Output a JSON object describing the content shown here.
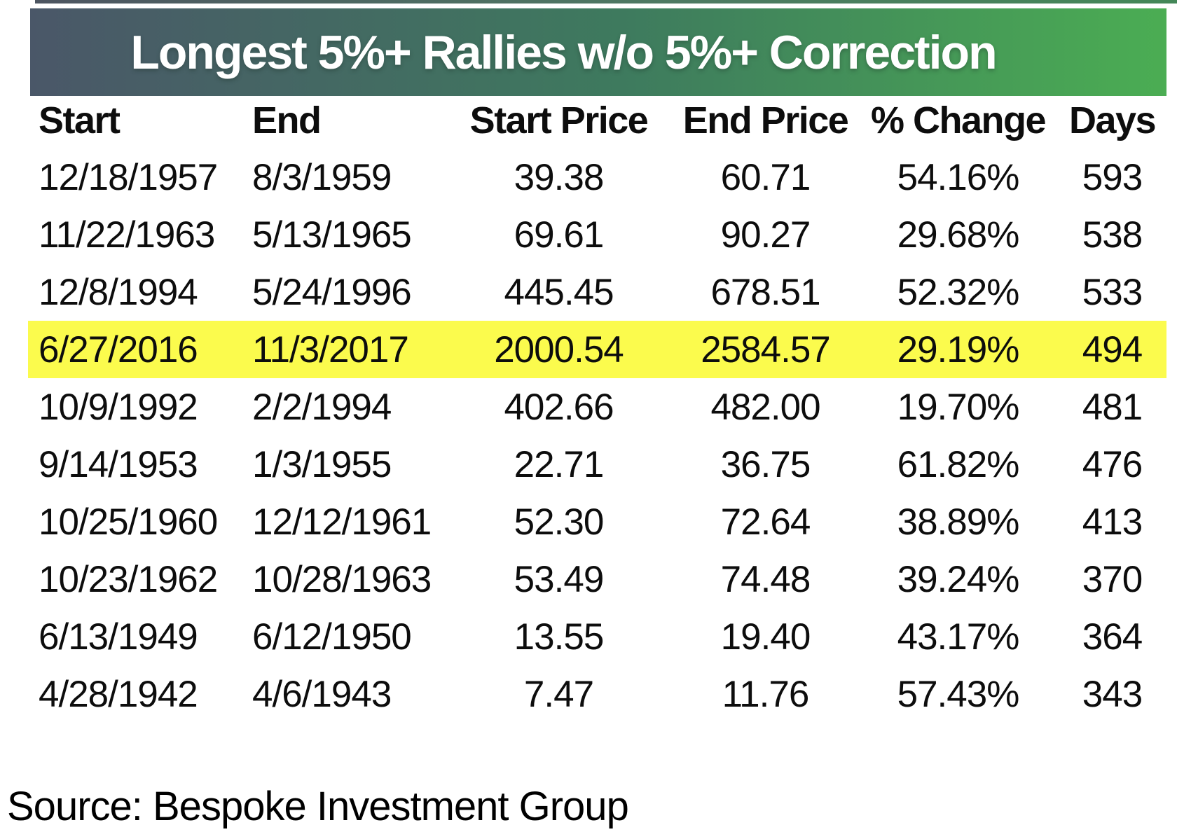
{
  "banner": {
    "title": "Longest 5%+ Rallies w/o 5%+ Correction"
  },
  "table": {
    "columns": [
      "Start",
      "End",
      "Start Price",
      "End Price",
      "% Change",
      "Days"
    ],
    "rows": [
      [
        "12/18/1957",
        "8/3/1959",
        "39.38",
        "60.71",
        "54.16%",
        "593"
      ],
      [
        "11/22/1963",
        "5/13/1965",
        "69.61",
        "90.27",
        "29.68%",
        "538"
      ],
      [
        "12/8/1994",
        "5/24/1996",
        "445.45",
        "678.51",
        "52.32%",
        "533"
      ],
      [
        "6/27/2016",
        "11/3/2017",
        "2000.54",
        "2584.57",
        "29.19%",
        "494"
      ],
      [
        "10/9/1992",
        "2/2/1994",
        "402.66",
        "482.00",
        "19.70%",
        "481"
      ],
      [
        "9/14/1953",
        "1/3/1955",
        "22.71",
        "36.75",
        "61.82%",
        "476"
      ],
      [
        "10/25/1960",
        "12/12/1961",
        "52.30",
        "72.64",
        "38.89%",
        "413"
      ],
      [
        "10/23/1962",
        "10/28/1963",
        "53.49",
        "74.48",
        "39.24%",
        "370"
      ],
      [
        "6/13/1949",
        "6/12/1950",
        "13.55",
        "19.40",
        "43.17%",
        "364"
      ],
      [
        "4/28/1942",
        "4/6/1943",
        "7.47",
        "11.76",
        "57.43%",
        "343"
      ]
    ],
    "highlighted_row_index": 3
  },
  "source": "Source: Bespoke Investment Group",
  "colors": {
    "banner_gradient_left": "#4A5768",
    "banner_gradient_mid": "#3E7A5E",
    "banner_gradient_right": "#4BAD53",
    "highlight": "#FBFB4D",
    "text": "#0d0d0d",
    "title_text": "#FFFFFF"
  },
  "chart_data": {
    "type": "table",
    "title": "Longest 5%+ Rallies w/o 5%+ Correction",
    "columns": [
      "Start",
      "End",
      "Start Price",
      "End Price",
      "% Change",
      "Days"
    ],
    "rows": [
      [
        "12/18/1957",
        "8/3/1959",
        "39.38",
        "60.71",
        "54.16%",
        "593"
      ],
      [
        "11/22/1963",
        "5/13/1965",
        "69.61",
        "90.27",
        "29.68%",
        "538"
      ],
      [
        "12/8/1994",
        "5/24/1996",
        "445.45",
        "678.51",
        "52.32%",
        "533"
      ],
      [
        "6/27/2016",
        "11/3/2017",
        "2000.54",
        "2584.57",
        "29.19%",
        "494"
      ],
      [
        "10/9/1992",
        "2/2/1994",
        "402.66",
        "482.00",
        "19.70%",
        "481"
      ],
      [
        "9/14/1953",
        "1/3/1955",
        "22.71",
        "36.75",
        "61.82%",
        "476"
      ],
      [
        "10/25/1960",
        "12/12/1961",
        "52.30",
        "72.64",
        "38.89%",
        "413"
      ],
      [
        "10/23/1962",
        "10/28/1963",
        "53.49",
        "74.48",
        "39.24%",
        "370"
      ],
      [
        "6/13/1949",
        "6/12/1950",
        "13.55",
        "19.40",
        "43.17%",
        "364"
      ],
      [
        "4/28/1942",
        "4/6/1943",
        "7.47",
        "11.76",
        "57.43%",
        "343"
      ]
    ],
    "highlighted_row": [
      "6/27/2016",
      "11/3/2017",
      "2000.54",
      "2584.57",
      "29.19%",
      "494"
    ],
    "source": "Source: Bespoke Investment Group"
  }
}
